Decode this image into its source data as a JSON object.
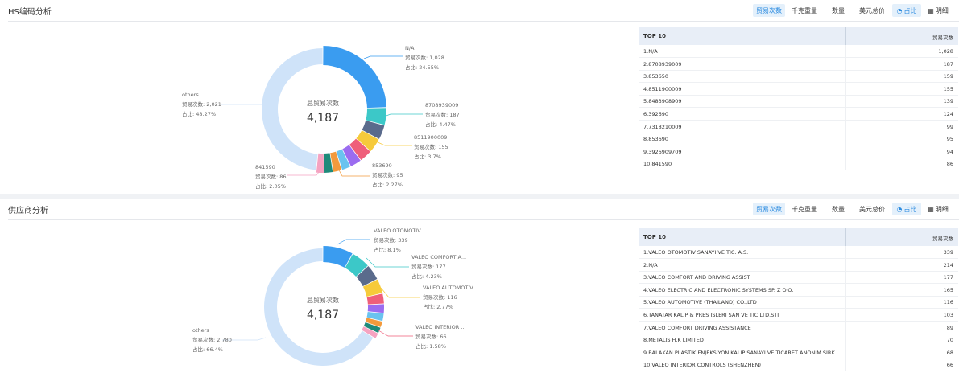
{
  "toolbar": {
    "tabs": [
      "贸易次数",
      "千克重量",
      "数量",
      "美元总价"
    ],
    "ratio_label": "占比",
    "detail_label": "明细"
  },
  "hs": {
    "title": "HS编码分析",
    "center_label": "总贸易次数",
    "center_value": "4,187",
    "table_col1": "TOP 10",
    "table_col2": "贸易次数",
    "rows": [
      {
        "name": "1.N/A",
        "value": "1,028"
      },
      {
        "name": "2.8708939009",
        "value": "187"
      },
      {
        "name": "3.853650",
        "value": "159"
      },
      {
        "name": "4.8511900009",
        "value": "155"
      },
      {
        "name": "5.8483908909",
        "value": "139"
      },
      {
        "name": "6.392690",
        "value": "124"
      },
      {
        "name": "7.7318210009",
        "value": "99"
      },
      {
        "name": "8.853690",
        "value": "95"
      },
      {
        "name": "9.3926909709",
        "value": "94"
      },
      {
        "name": "10.841590",
        "value": "86"
      }
    ],
    "callouts": {
      "na": {
        "name": "N/A",
        "count": "贸易次数: 1,028",
        "pct": "占比: 24.55%"
      },
      "c2": {
        "name": "8708939009",
        "count": "贸易次数: 187",
        "pct": "占比: 4.47%"
      },
      "c3": {
        "name": "8511900009",
        "count": "贸易次数: 155",
        "pct": "占比: 3.7%"
      },
      "c4": {
        "name": "853690",
        "count": "贸易次数: 95",
        "pct": "占比: 2.27%"
      },
      "c5": {
        "name": "841590",
        "count": "贸易次数: 86",
        "pct": "占比: 2.05%"
      },
      "others": {
        "name": "others",
        "count": "贸易次数: 2,021",
        "pct": "占比: 48.27%"
      }
    }
  },
  "supplier": {
    "title": "供应商分析",
    "center_label": "总贸易次数",
    "center_value": "4,187",
    "table_col1": "TOP 10",
    "table_col2": "贸易次数",
    "rows": [
      {
        "name": "1.VALEO OTOMOTIV SANAYI VE TIC. A.S.",
        "value": "339"
      },
      {
        "name": "2.N/A",
        "value": "214"
      },
      {
        "name": "3.VALEO COMFORT AND DRIVING ASSIST",
        "value": "177"
      },
      {
        "name": "4.VALEO ELECTRIC AND ELECTRONIC SYSTEMS SP. Z O.O.",
        "value": "165"
      },
      {
        "name": "5.VALEO AUTOMOTIVE (THAILAND) CO.,LTD",
        "value": "116"
      },
      {
        "name": "6.TANATAR KALIP & PRES ISLERI SAN VE TIC.LTD.STI",
        "value": "103"
      },
      {
        "name": "7.VALEO COMFORT DRIVING ASSISTANCE",
        "value": "89"
      },
      {
        "name": "8.METALIS H.K LIMITED",
        "value": "70"
      },
      {
        "name": "9.BALAKAN PLASTIK ENJEKSIYON KALIP SANAYI VE TICARET ANONIM SIRK...",
        "value": "68"
      },
      {
        "name": "10.VALEO INTERIOR CONTROLS (SHENZHEN)",
        "value": "66"
      }
    ],
    "callouts": {
      "c1": {
        "name": "VALEO OTOMOTIV ...",
        "count": "贸易次数: 339",
        "pct": "占比: 8.1%"
      },
      "c2": {
        "name": "VALEO COMFORT A...",
        "count": "贸易次数: 177",
        "pct": "占比: 4.23%"
      },
      "c3": {
        "name": "VALEO AUTOMOTIV...",
        "count": "贸易次数: 116",
        "pct": "占比: 2.77%"
      },
      "c4": {
        "name": "VALEO INTERIOR ...",
        "count": "贸易次数: 66",
        "pct": "占比: 1.58%"
      },
      "others": {
        "name": "others",
        "count": "贸易次数: 2,780",
        "pct": "占比: 66.4%"
      }
    }
  },
  "colors": {
    "accent": "#2d8ce0",
    "others": "#cfe3f9",
    "palette": [
      "#3a9cf0",
      "#3cc8c8",
      "#5a6b8c",
      "#f6ca3a",
      "#ef5f7a",
      "#9b6cf0",
      "#6ac3ef",
      "#f39a3c",
      "#1f8a7a",
      "#f5a3c1"
    ]
  },
  "chart_data": [
    {
      "type": "pie",
      "title": "HS编码分析",
      "categories": [
        "N/A",
        "8708939009",
        "853650",
        "8511900009",
        "8483908909",
        "392690",
        "7318210009",
        "853690",
        "3926909709",
        "841590",
        "others"
      ],
      "values": [
        1028,
        187,
        159,
        155,
        139,
        124,
        99,
        95,
        94,
        86,
        2021
      ],
      "total": 4187
    },
    {
      "type": "pie",
      "title": "供应商分析",
      "categories": [
        "VALEO OTOMOTIV SANAYI VE TIC. A.S.",
        "N/A",
        "VALEO COMFORT AND DRIVING ASSIST",
        "VALEO ELECTRIC AND ELECTRONIC SYSTEMS SP. Z O.O.",
        "VALEO AUTOMOTIVE (THAILAND) CO.,LTD",
        "TANATAR KALIP & PRES ISLERI SAN VE TIC.LTD.STI",
        "VALEO COMFORT DRIVING ASSISTANCE",
        "METALIS H.K LIMITED",
        "BALAKAN PLASTIK ENJEKSIYON KALIP SANAYI VE TICARET ANONIM SIRK...",
        "VALEO INTERIOR CONTROLS (SHENZHEN)",
        "others"
      ],
      "values": [
        339,
        214,
        177,
        165,
        116,
        103,
        89,
        70,
        68,
        66,
        2780
      ],
      "total": 4187
    }
  ]
}
